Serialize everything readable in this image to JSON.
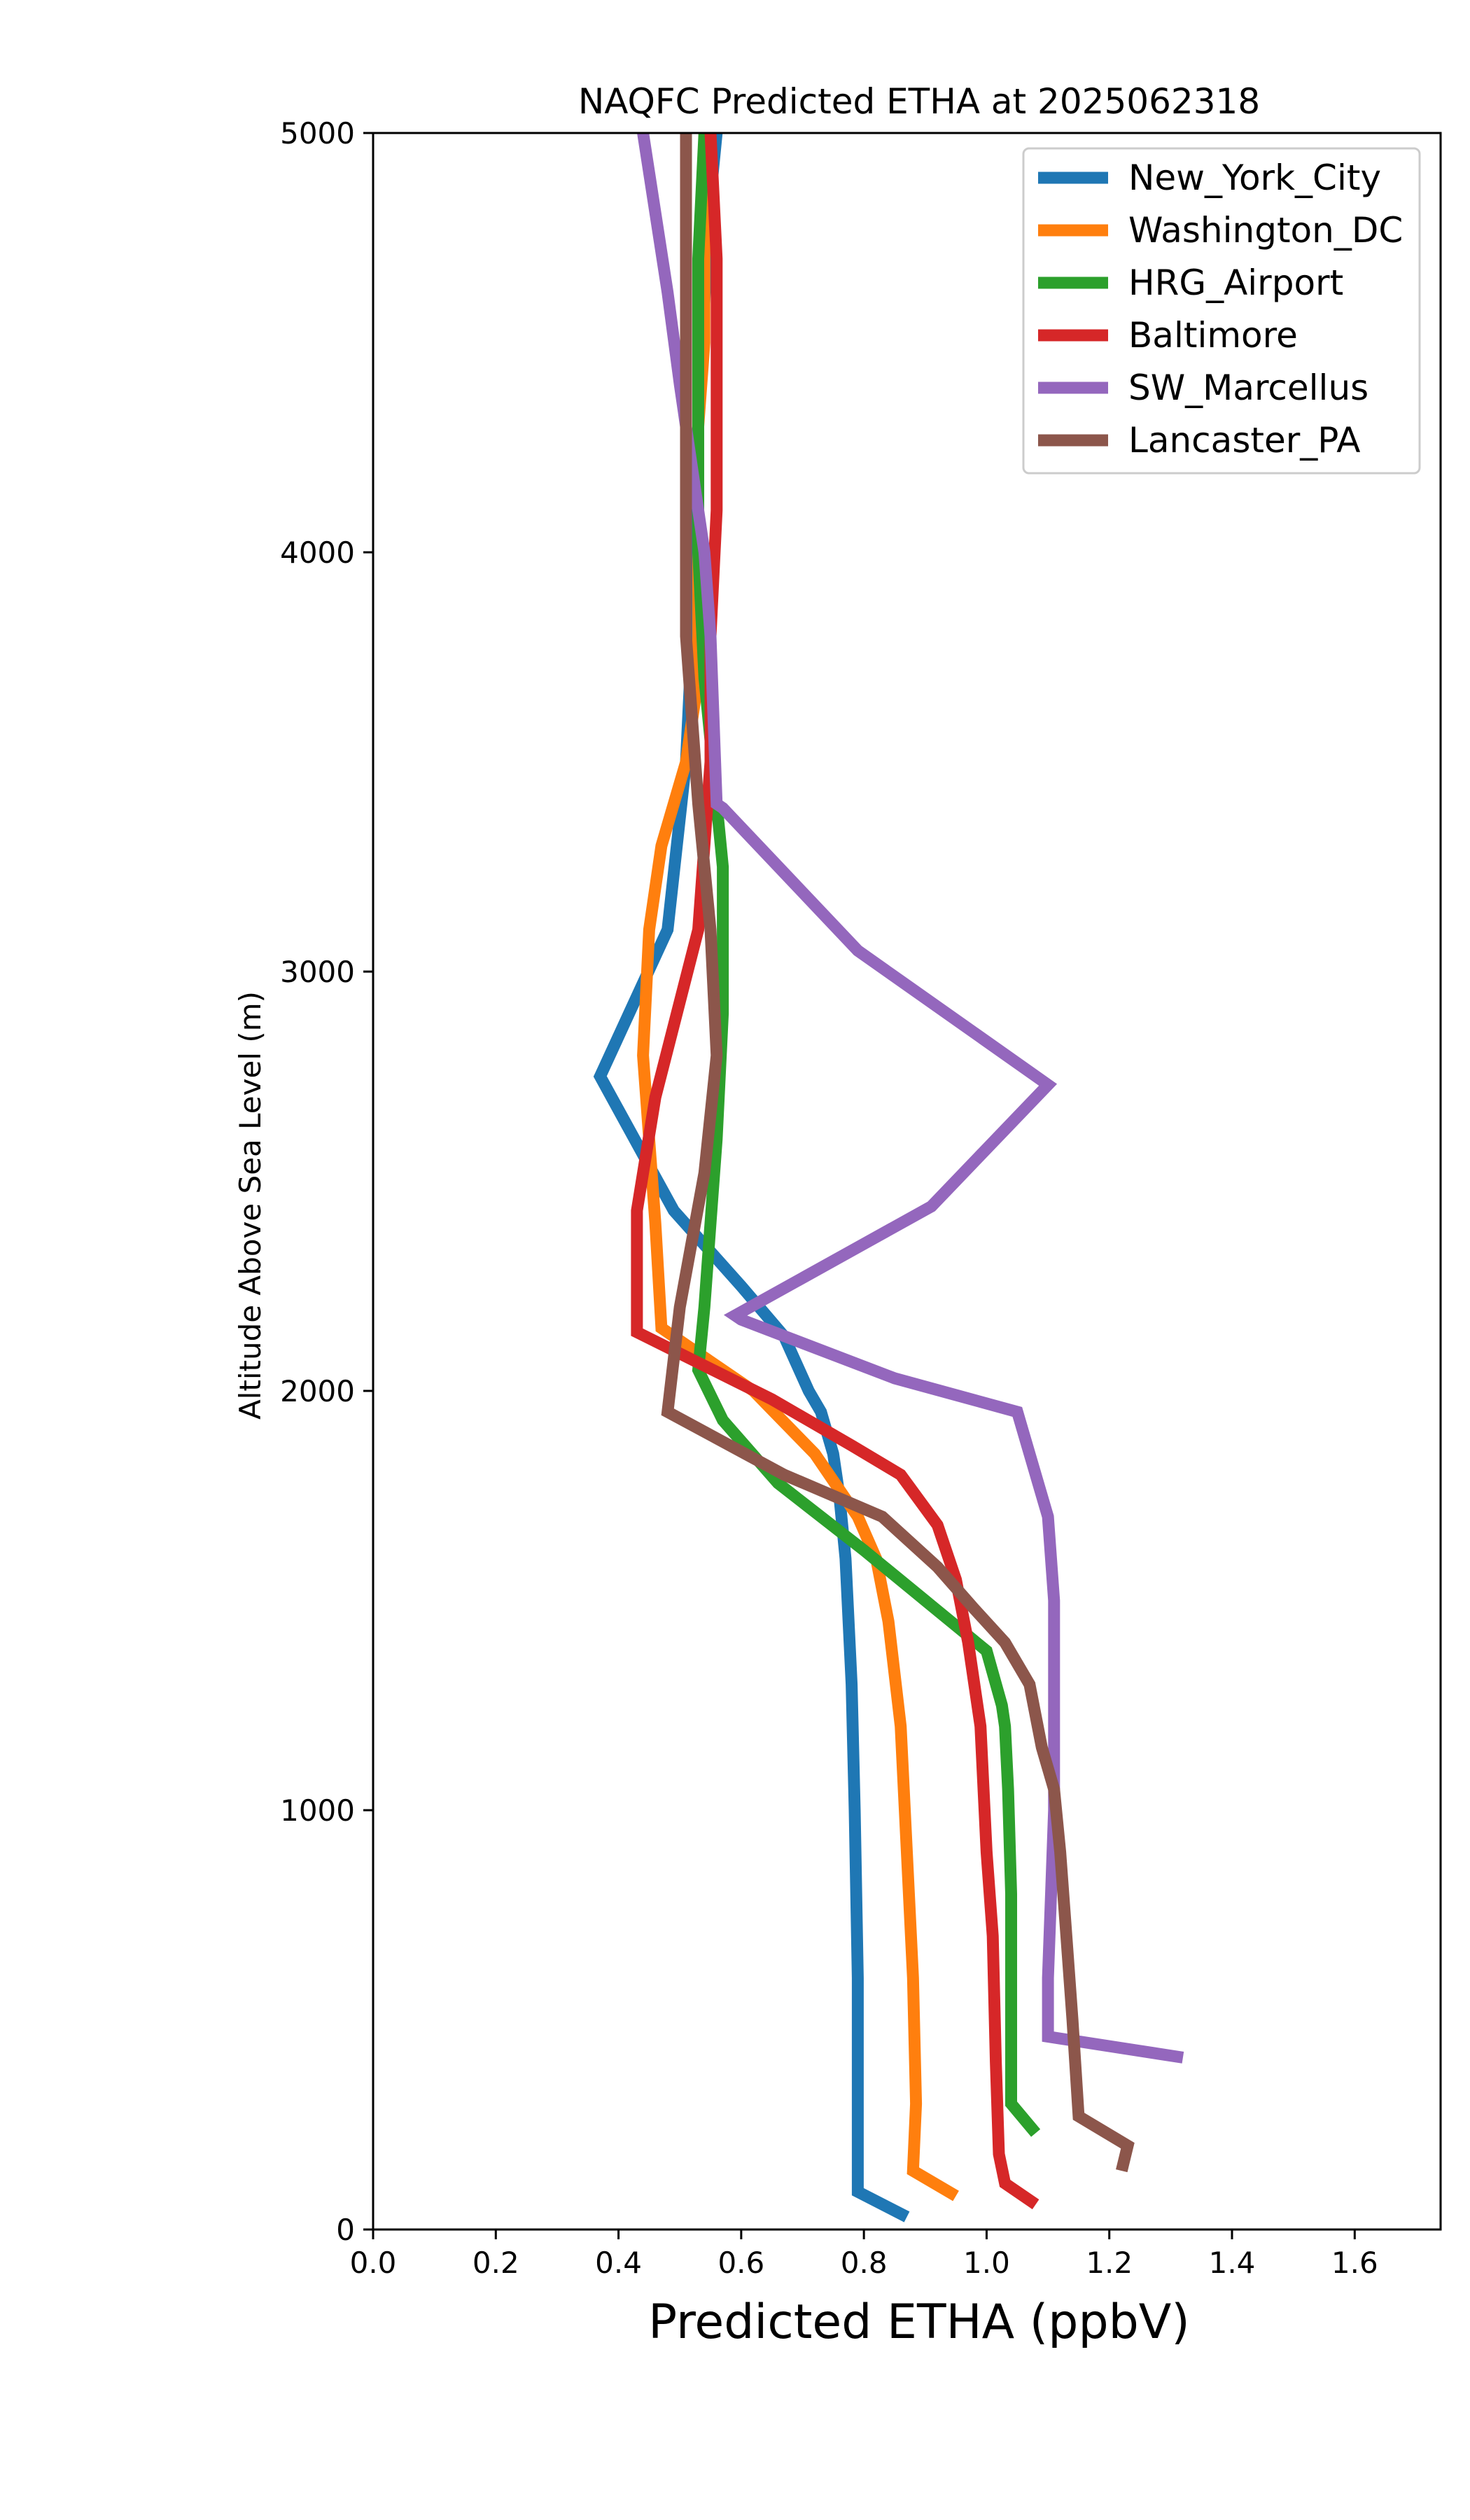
{
  "chart_data": {
    "type": "line",
    "title": "NAQFC Predicted ETHA at 2025062318",
    "xlabel": "Predicted ETHA (ppbV)",
    "ylabel": "Altitude Above Sea Level (m)",
    "xlim": [
      0.0,
      1.74
    ],
    "ylim": [
      0,
      5000
    ],
    "xticks": [
      "0.0",
      "0.2",
      "0.4",
      "0.6",
      "0.8",
      "1.0",
      "1.2",
      "1.4",
      "1.6"
    ],
    "xtick_values": [
      0.0,
      0.2,
      0.4,
      0.6,
      0.8,
      1.0,
      1.2,
      1.4,
      1.6
    ],
    "yticks": [
      "0",
      "1000",
      "2000",
      "3000",
      "4000",
      "5000"
    ],
    "ytick_values": [
      0,
      1000,
      2000,
      3000,
      4000,
      5000
    ],
    "grid": false,
    "legend_position": "top-right",
    "series": [
      {
        "name": "New_York_City",
        "color": "#1f77b4",
        "x": [
          0.87,
          0.79,
          0.79,
          0.79,
          0.79,
          0.785,
          0.78,
          0.77,
          0.76,
          0.75,
          0.73,
          0.71,
          0.67,
          0.6,
          0.49,
          0.37,
          0.48,
          0.51,
          0.52,
          0.53,
          0.53,
          0.54,
          0.55,
          0.56
        ],
        "y": [
          30,
          90,
          170,
          300,
          600,
          1000,
          1300,
          1600,
          1750,
          1850,
          1950,
          2000,
          2130,
          2250,
          2430,
          2750,
          3100,
          3500,
          3800,
          4200,
          4400,
          4600,
          4850,
          5000
        ]
      },
      {
        "name": "Washington_DC",
        "color": "#ff7f0e",
        "x": [
          0.95,
          0.88,
          0.885,
          0.88,
          0.87,
          0.86,
          0.84,
          0.82,
          0.79,
          0.72,
          0.62,
          0.47,
          0.46,
          0.45,
          0.44,
          0.45,
          0.47,
          0.51,
          0.53,
          0.53,
          0.53,
          0.54,
          0.54,
          0.54
        ],
        "y": [
          80,
          140,
          300,
          600,
          900,
          1200,
          1450,
          1600,
          1700,
          1850,
          2000,
          2150,
          2400,
          2600,
          2800,
          3100,
          3300,
          3500,
          3700,
          4000,
          4300,
          4500,
          4800,
          5000
        ]
      },
      {
        "name": "HRG_Airport",
        "color": "#2ca02c",
        "x": [
          1.08,
          1.04,
          1.04,
          1.04,
          1.035,
          1.03,
          1.025,
          1.0,
          0.9,
          0.8,
          0.66,
          0.57,
          0.53,
          0.54,
          0.55,
          0.56,
          0.57,
          0.57,
          0.56,
          0.54,
          0.53,
          0.53,
          0.53,
          0.54
        ],
        "y": [
          230,
          300,
          500,
          800,
          1050,
          1200,
          1250,
          1380,
          1500,
          1620,
          1780,
          1930,
          2050,
          2200,
          2400,
          2600,
          2900,
          3250,
          3400,
          3700,
          4000,
          4300,
          4700,
          5000
        ]
      },
      {
        "name": "Baltimore",
        "color": "#d62728",
        "x": [
          1.08,
          1.03,
          1.02,
          1.015,
          1.01,
          1.0,
          0.99,
          0.97,
          0.95,
          0.92,
          0.86,
          0.78,
          0.65,
          0.43,
          0.43,
          0.43,
          0.46,
          0.53,
          0.55,
          0.55,
          0.56,
          0.56,
          0.56,
          0.55
        ],
        "y": [
          60,
          110,
          180,
          400,
          700,
          900,
          1200,
          1400,
          1550,
          1680,
          1800,
          1870,
          1980,
          2140,
          2300,
          2430,
          2700,
          3100,
          3500,
          3800,
          4100,
          4400,
          4700,
          5000
        ]
      },
      {
        "name": "SW_Marcellus",
        "color": "#9467bd",
        "x": [
          1.32,
          1.1,
          1.1,
          1.1,
          1.105,
          1.11,
          1.11,
          1.11,
          1.1,
          1.05,
          0.85,
          0.6,
          0.59,
          0.91,
          1.1,
          0.79,
          0.57,
          0.56,
          0.55,
          0.54,
          0.52,
          0.5,
          0.48,
          0.44
        ],
        "y": [
          410,
          460,
          500,
          600,
          800,
          1000,
          1300,
          1500,
          1700,
          1950,
          2030,
          2170,
          2180,
          2440,
          2730,
          3050,
          3390,
          3400,
          3800,
          4000,
          4200,
          4400,
          4620,
          5000
        ]
      },
      {
        "name": "Lancaster_PA",
        "color": "#8c564b",
        "x": [
          1.22,
          1.23,
          1.15,
          1.14,
          1.13,
          1.12,
          1.11,
          1.09,
          1.07,
          1.03,
          0.98,
          0.92,
          0.83,
          0.67,
          0.48,
          0.5,
          0.54,
          0.56,
          0.55,
          0.53,
          0.51,
          0.51,
          0.51,
          0.51
        ],
        "y": [
          140,
          200,
          270,
          500,
          700,
          900,
          1050,
          1150,
          1300,
          1400,
          1480,
          1580,
          1700,
          1800,
          1950,
          2200,
          2520,
          2800,
          3100,
          3400,
          3800,
          4200,
          4600,
          5000
        ]
      }
    ]
  }
}
